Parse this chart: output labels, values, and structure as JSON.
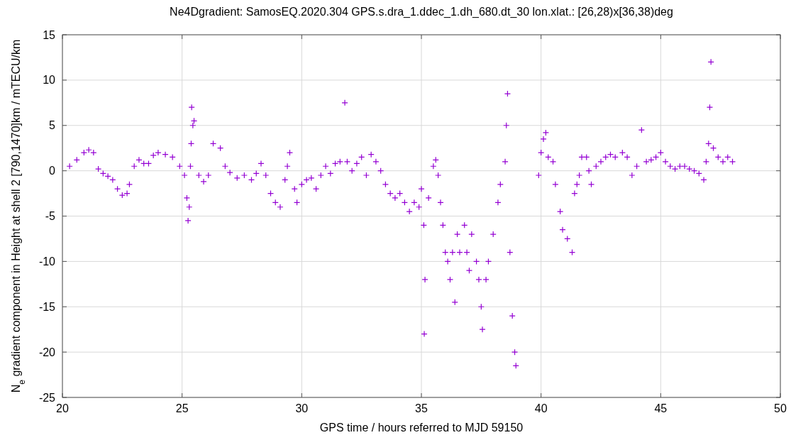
{
  "chart_data": {
    "type": "scatter",
    "title": "Ne4Dgradient: SamosEQ.2020.304 GPS.s.dra_1.ddec_1.dh_680.dt_30 lon.xlat.: [26,28)x[36,38)deg",
    "xlabel": "GPS time / hours referred to MJD 59150",
    "ylabel": "N$_{e}$ gradient component in Height at shell 2 [790,1470]km / mTECU/km",
    "xlim": [
      20,
      50
    ],
    "xticks": [
      20,
      25,
      30,
      35,
      40,
      45,
      50
    ],
    "ylim": [
      -25,
      15
    ],
    "yticks": [
      -25,
      -20,
      -15,
      -10,
      -5,
      0,
      5,
      10,
      15
    ],
    "grid": true,
    "marker": "cross",
    "series": [
      {
        "color": "#9400d3",
        "x": [
          20.3,
          20.6,
          20.9,
          21.1,
          21.3,
          21.5,
          21.7,
          21.9,
          22.1,
          22.3,
          22.5,
          22.7,
          22.8,
          23.0,
          23.2,
          23.4,
          23.6,
          23.8,
          24.0,
          24.3,
          24.6,
          24.9,
          25.1,
          25.2,
          25.25,
          25.3,
          25.35,
          25.38,
          25.4,
          25.45,
          25.5,
          25.7,
          25.9,
          26.1,
          26.3,
          26.6,
          26.8,
          27.0,
          27.3,
          27.6,
          27.9,
          28.1,
          28.3,
          28.5,
          28.7,
          28.9,
          29.1,
          29.3,
          29.4,
          29.5,
          29.7,
          29.8,
          30.0,
          30.2,
          30.4,
          30.6,
          30.8,
          31.0,
          31.2,
          31.4,
          31.6,
          31.8,
          31.9,
          32.1,
          32.3,
          32.5,
          32.7,
          32.9,
          33.1,
          33.3,
          33.5,
          33.7,
          33.9,
          34.1,
          34.3,
          34.5,
          34.7,
          34.9,
          35.0,
          35.1,
          35.15,
          35.12,
          35.3,
          35.5,
          35.6,
          35.7,
          35.8,
          35.9,
          36.0,
          36.1,
          36.2,
          36.3,
          36.4,
          36.5,
          36.6,
          36.8,
          36.9,
          37.0,
          37.1,
          37.3,
          37.4,
          37.5,
          37.55,
          37.7,
          37.8,
          38.0,
          38.2,
          38.3,
          38.5,
          38.55,
          38.6,
          38.7,
          38.8,
          38.9,
          38.95,
          39.9,
          40.0,
          40.1,
          40.2,
          40.3,
          40.5,
          40.6,
          40.8,
          40.9,
          41.1,
          41.3,
          41.4,
          41.5,
          41.6,
          41.7,
          41.9,
          42.0,
          42.1,
          42.3,
          42.5,
          42.7,
          42.9,
          43.1,
          43.4,
          43.6,
          43.8,
          44.0,
          44.2,
          44.4,
          44.6,
          44.8,
          45.0,
          45.2,
          45.4,
          45.6,
          45.8,
          46.0,
          46.2,
          46.4,
          46.6,
          46.8,
          46.9,
          47.0,
          47.05,
          47.1,
          47.2,
          47.4,
          47.6,
          47.8,
          48.0
        ],
        "values": [
          0.5,
          1.2,
          2.0,
          2.3,
          2.0,
          0.2,
          -0.3,
          -0.6,
          -1.0,
          -2.0,
          -2.7,
          -2.5,
          -1.5,
          0.5,
          1.2,
          0.8,
          0.8,
          1.7,
          2.0,
          1.8,
          1.5,
          0.5,
          -0.5,
          -3,
          -5.5,
          -4,
          0.5,
          3,
          7,
          5,
          5.5,
          -0.5,
          -1.2,
          -0.5,
          3.0,
          2.5,
          0.5,
          -0.2,
          -0.8,
          -0.5,
          -1.0,
          -0.3,
          0.8,
          -0.5,
          -2.5,
          -3.5,
          -4.0,
          -1.0,
          0.5,
          2,
          -2,
          -3.5,
          -1.5,
          -1.0,
          -0.8,
          -2.0,
          -0.5,
          0.5,
          -0.3,
          0.8,
          1.0,
          7.5,
          1.0,
          0.0,
          0.8,
          1.5,
          -0.5,
          1.8,
          1.0,
          0.0,
          -1.5,
          -2.5,
          -3.0,
          -2.5,
          -3.5,
          -4.5,
          -3.5,
          -4.0,
          -2.0,
          -6.0,
          -12,
          -18,
          -3,
          0.5,
          1.2,
          -0.5,
          -3.5,
          -6,
          -9,
          -10,
          -12,
          -9,
          -14.5,
          -7,
          -9,
          -6,
          -9,
          -11,
          -7,
          -10,
          -12,
          -15,
          -17.5,
          -12,
          -10,
          -7,
          -3.5,
          -1.5,
          1.0,
          5.0,
          8.5,
          -9,
          -16,
          -20,
          -21.5,
          -0.5,
          2,
          3.5,
          4.2,
          1.5,
          1.0,
          -1.5,
          -4.5,
          -6.5,
          -7.5,
          -9,
          -2.5,
          -1.5,
          -0.5,
          1.5,
          1.5,
          0,
          -1.5,
          0.5,
          1.0,
          1.5,
          1.8,
          1.5,
          2.0,
          1.5,
          -0.5,
          0.5,
          4.5,
          1.0,
          1.2,
          1.5,
          2.0,
          1.0,
          0.5,
          0.2,
          0.5,
          0.5,
          0.2,
          0.0,
          -0.3,
          -1.0,
          1.0,
          3.0,
          7,
          12,
          2.5,
          1.5,
          1.0,
          1.5,
          1.0
        ]
      }
    ]
  }
}
